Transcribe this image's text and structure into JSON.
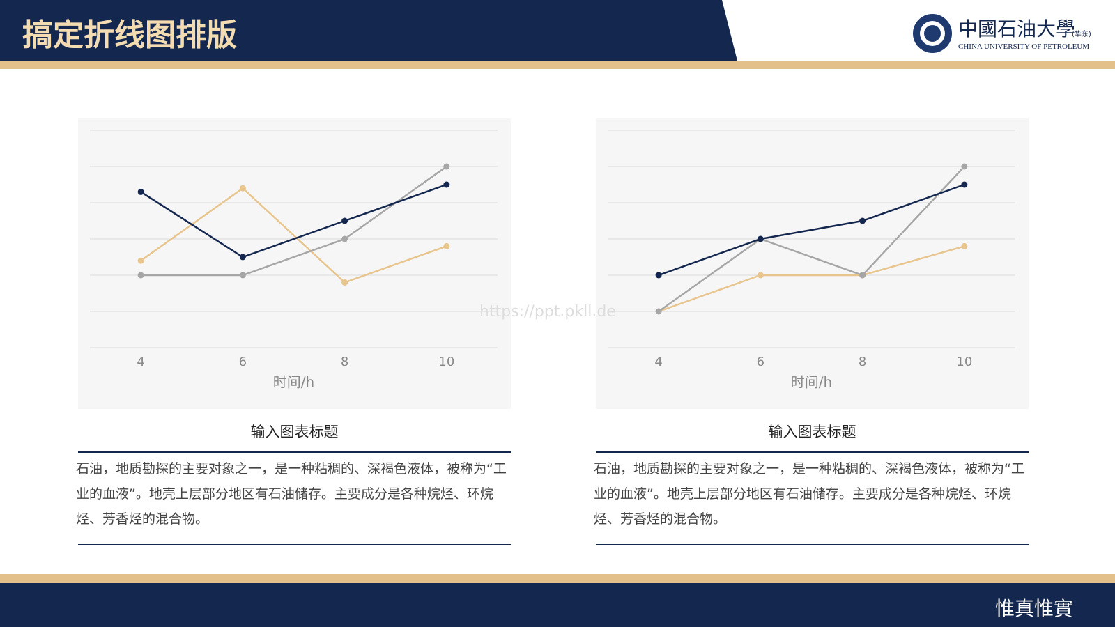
{
  "header": {
    "title": "搞定折线图排版",
    "logo_name": "中國石油大學",
    "logo_campus": "(华东)",
    "logo_english": "CHINA UNIVERSITY OF PETROLEUM"
  },
  "watermark": "https://ppt.pkll.de",
  "motto": "惟真惟實",
  "chart_data": [
    {
      "type": "line",
      "x": [
        4,
        6,
        8,
        10
      ],
      "xlim": [
        3,
        11
      ],
      "xticks": [
        4,
        6,
        8,
        10
      ],
      "xlabel": "时间/h",
      "ylim": [
        0,
        6
      ],
      "yticks": [
        0,
        1,
        2,
        3,
        4,
        5,
        6
      ],
      "grid": true,
      "series": [
        {
          "color": "#e8c58c",
          "values": [
            2.4,
            4.4,
            1.8,
            2.8
          ]
        },
        {
          "color": "#a6a6a6",
          "values": [
            2,
            2,
            3,
            5
          ]
        },
        {
          "color": "#14274e",
          "values": [
            4.3,
            2.5,
            3.5,
            4.5
          ]
        }
      ]
    },
    {
      "type": "line",
      "x": [
        4,
        6,
        8,
        10
      ],
      "xlim": [
        3,
        11
      ],
      "xticks": [
        4,
        6,
        8,
        10
      ],
      "xlabel": "时间/h",
      "ylim": [
        0,
        6
      ],
      "yticks": [
        0,
        1,
        2,
        3,
        4,
        5,
        6
      ],
      "grid": true,
      "series": [
        {
          "color": "#e8c58c",
          "values": [
            1,
            2,
            2,
            2.8
          ]
        },
        {
          "color": "#a6a6a6",
          "values": [
            1,
            3,
            2,
            5
          ]
        },
        {
          "color": "#14274e",
          "values": [
            2,
            3,
            3.5,
            4.5
          ]
        }
      ]
    }
  ],
  "captions": [
    {
      "title": "输入图表标题",
      "body": "石油，地质勘探的主要对象之一，是一种粘稠的、深褐色液体，被称为“工业的血液”。地壳上层部分地区有石油储存。主要成分是各种烷烃、环烷烃、芳香烃的混合物。"
    },
    {
      "title": "输入图表标题",
      "body": "石油，地质勘探的主要对象之一，是一种粘稠的、深褐色液体，被称为“工业的血液”。地壳上层部分地区有石油储存。主要成分是各种烷烃、环烷烃、芳香烃的混合物。"
    }
  ]
}
